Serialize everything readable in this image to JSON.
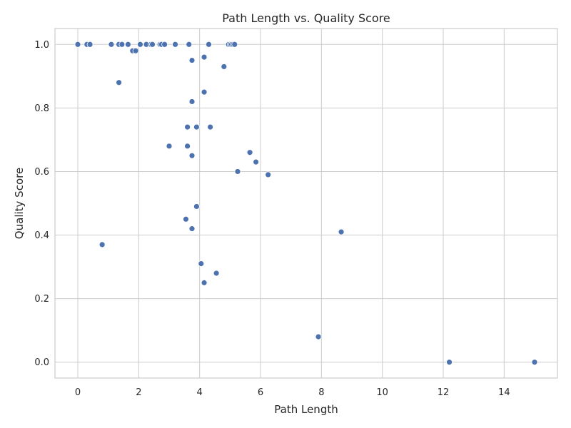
{
  "chart_data": {
    "type": "scatter",
    "title": "Path Length vs. Quality Score",
    "xlabel": "Path Length",
    "ylabel": "Quality Score",
    "xlim": [
      -0.75,
      15.75
    ],
    "ylim": [
      -0.05,
      1.05
    ],
    "xticks": [
      0,
      2,
      4,
      6,
      8,
      10,
      12,
      14
    ],
    "yticks": [
      0.0,
      0.2,
      0.4,
      0.6,
      0.8,
      1.0
    ],
    "xtick_labels": [
      "0",
      "2",
      "4",
      "6",
      "8",
      "10",
      "12",
      "14"
    ],
    "ytick_labels": [
      "0.0",
      "0.2",
      "0.4",
      "0.6",
      "0.8",
      "1.0"
    ],
    "grid": true,
    "color": "#4c72b0",
    "points": [
      {
        "x": 0.0,
        "y": 1.0
      },
      {
        "x": 0.3,
        "y": 1.0
      },
      {
        "x": 0.4,
        "y": 1.0
      },
      {
        "x": 1.1,
        "y": 1.0
      },
      {
        "x": 1.35,
        "y": 1.0
      },
      {
        "x": 1.45,
        "y": 1.0
      },
      {
        "x": 1.65,
        "y": 1.0
      },
      {
        "x": 2.05,
        "y": 1.0
      },
      {
        "x": 2.25,
        "y": 1.0
      },
      {
        "x": 2.4,
        "y": 1.0
      },
      {
        "x": 2.45,
        "y": 1.0
      },
      {
        "x": 2.7,
        "y": 1.0
      },
      {
        "x": 2.75,
        "y": 1.0
      },
      {
        "x": 2.85,
        "y": 1.0
      },
      {
        "x": 3.2,
        "y": 1.0
      },
      {
        "x": 3.65,
        "y": 1.0
      },
      {
        "x": 4.3,
        "y": 1.0
      },
      {
        "x": 4.95,
        "y": 1.0
      },
      {
        "x": 5.0,
        "y": 1.0
      },
      {
        "x": 5.05,
        "y": 1.0
      },
      {
        "x": 5.1,
        "y": 1.0
      },
      {
        "x": 5.15,
        "y": 1.0
      },
      {
        "x": 1.8,
        "y": 0.98
      },
      {
        "x": 1.9,
        "y": 0.98
      },
      {
        "x": 4.15,
        "y": 0.96
      },
      {
        "x": 3.75,
        "y": 0.95
      },
      {
        "x": 4.8,
        "y": 0.93
      },
      {
        "x": 1.35,
        "y": 0.88
      },
      {
        "x": 4.15,
        "y": 0.85
      },
      {
        "x": 3.75,
        "y": 0.82
      },
      {
        "x": 3.6,
        "y": 0.74
      },
      {
        "x": 3.9,
        "y": 0.74
      },
      {
        "x": 4.35,
        "y": 0.74
      },
      {
        "x": 3.0,
        "y": 0.68
      },
      {
        "x": 3.6,
        "y": 0.68
      },
      {
        "x": 5.65,
        "y": 0.66
      },
      {
        "x": 3.75,
        "y": 0.65
      },
      {
        "x": 5.85,
        "y": 0.63
      },
      {
        "x": 5.25,
        "y": 0.6
      },
      {
        "x": 6.25,
        "y": 0.59
      },
      {
        "x": 3.9,
        "y": 0.49
      },
      {
        "x": 3.55,
        "y": 0.45
      },
      {
        "x": 3.75,
        "y": 0.42
      },
      {
        "x": 8.65,
        "y": 0.41
      },
      {
        "x": 0.8,
        "y": 0.37
      },
      {
        "x": 4.05,
        "y": 0.31
      },
      {
        "x": 4.55,
        "y": 0.28
      },
      {
        "x": 4.15,
        "y": 0.25
      },
      {
        "x": 7.9,
        "y": 0.08
      },
      {
        "x": 12.2,
        "y": 0.0
      },
      {
        "x": 15.0,
        "y": 0.0
      }
    ]
  }
}
